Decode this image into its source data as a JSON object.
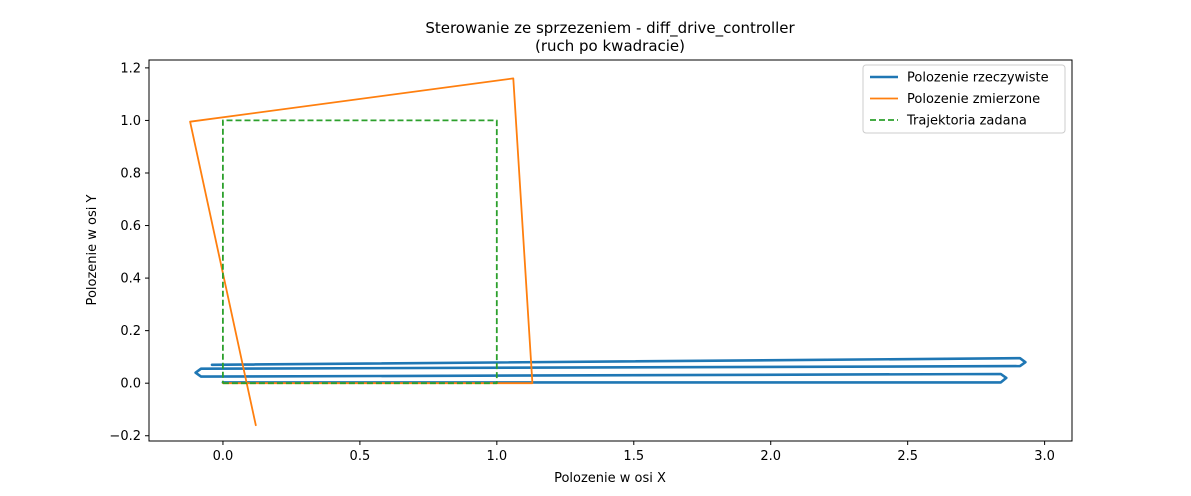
{
  "chart_data": {
    "type": "line",
    "title": "Sterowanie ze sprzezeniem - diff_drive_controller",
    "subtitle": "(ruch po kwadracie)",
    "xlabel": "Polozenie w osi X",
    "ylabel": "Polozenie w osi Y",
    "xlim": [
      -0.27,
      3.1
    ],
    "ylim": [
      -0.22,
      1.23
    ],
    "xticks": [
      0.0,
      0.5,
      1.0,
      1.5,
      2.0,
      2.5,
      3.0
    ],
    "xtick_labels": [
      "0.0",
      "0.5",
      "1.0",
      "1.5",
      "2.0",
      "2.5",
      "3.0"
    ],
    "yticks": [
      -0.2,
      0.0,
      0.2,
      0.4,
      0.6,
      0.8,
      1.0,
      1.2
    ],
    "ytick_labels": [
      "−0.2",
      "0.0",
      "0.2",
      "0.4",
      "0.6",
      "0.8",
      "1.0",
      "1.2"
    ],
    "grid": false,
    "legend_position": "top-right",
    "series": [
      {
        "name": "Polozenie rzeczywiste",
        "color": "#1f77b4",
        "style": "solid",
        "x": [
          -0.04,
          2.91,
          2.93,
          2.91,
          -0.08,
          -0.1,
          -0.08,
          2.84,
          2.86,
          2.84,
          0.0
        ],
        "y": [
          0.07,
          0.095,
          0.08,
          0.065,
          0.055,
          0.04,
          0.025,
          0.035,
          0.02,
          0.003,
          0.003
        ]
      },
      {
        "name": "Polozenie zmierzone",
        "color": "#ff7f0e",
        "style": "solid",
        "x": [
          0.0,
          1.13,
          1.06,
          -0.12,
          0.12
        ],
        "y": [
          0.0,
          0.0,
          1.16,
          0.995,
          -0.16
        ]
      },
      {
        "name": "Trajektoria zadana",
        "color": "#2ca02c",
        "style": "dashed",
        "x": [
          0.0,
          1.0,
          1.0,
          0.0,
          0.0
        ],
        "y": [
          0.0,
          0.0,
          1.0,
          1.0,
          0.0
        ]
      }
    ]
  }
}
